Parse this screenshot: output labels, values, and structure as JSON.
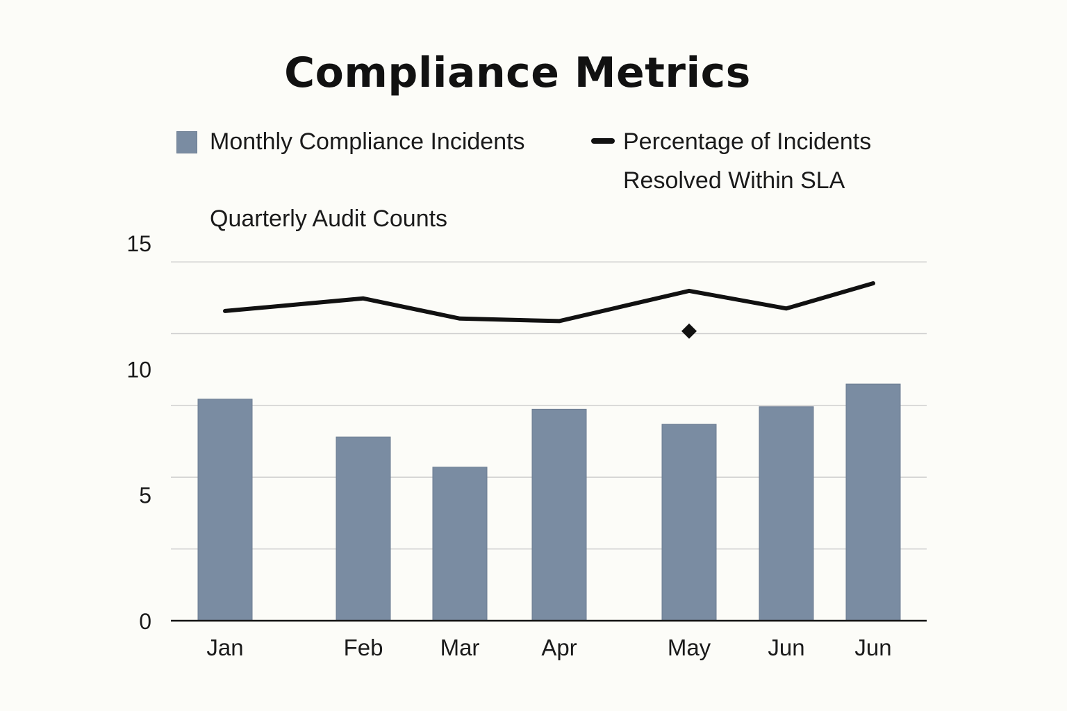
{
  "chart_data": {
    "type": "bar",
    "title": "Compliance Metrics",
    "categories": [
      "Jan",
      "Feb",
      "Mar",
      "Apr",
      "May",
      "Jun",
      "Jun"
    ],
    "series": [
      {
        "name": "Monthly Compliance Incidents",
        "type": "bar",
        "values": [
          8.8,
          7.3,
          6.1,
          8.4,
          7.8,
          8.5,
          9.4
        ]
      },
      {
        "name": "Percentage of Incidents Resolved Within SLA",
        "type": "line",
        "values": [
          12.3,
          12.8,
          12.0,
          11.9,
          13.1,
          12.4,
          13.4
        ]
      },
      {
        "name": "Quarterly Audit Counts",
        "type": "scatter",
        "points": [
          {
            "category_index": 4,
            "value": 11.5
          }
        ]
      }
    ],
    "legend_line_name": [
      "Percentage of Incidents",
      "Resolved Within SLA"
    ],
    "yticks": [
      "15",
      "10",
      "5",
      "0"
    ],
    "gridlines": [
      0,
      2.85,
      5.7,
      8.55,
      11.4,
      14.25
    ],
    "ylim": [
      0,
      15
    ],
    "grid": true,
    "legend_position": "top-left",
    "colors": {
      "bar": "#7a8ca2",
      "line": "#111111",
      "marker": "#111111",
      "grid": "#cfcfcf",
      "axis": "#111111"
    }
  }
}
